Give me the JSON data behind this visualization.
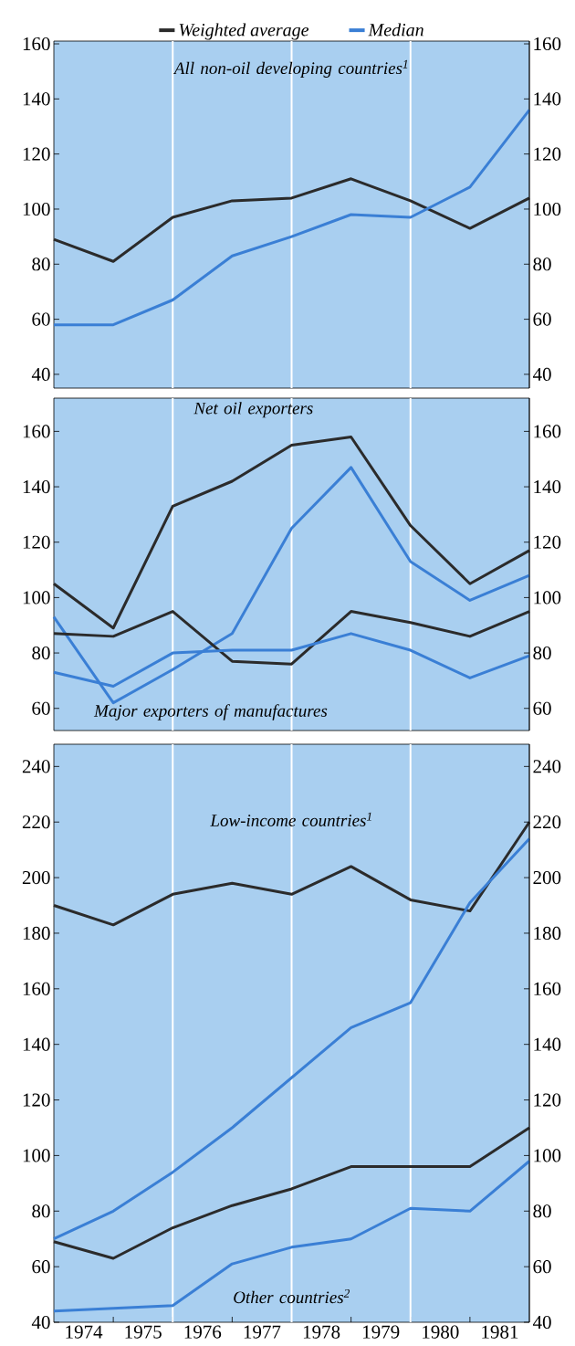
{
  "chart_data": [
    {
      "type": "line",
      "xlim": [
        1973.5,
        1981.5
      ],
      "ylim": [
        35,
        161
      ],
      "yticks": [
        40,
        60,
        80,
        100,
        120,
        140,
        160
      ],
      "y2lim": [
        35,
        161
      ],
      "y2ticks": [
        40,
        60,
        80,
        100,
        120,
        140,
        160
      ],
      "tick_labels": "y",
      "legend": "top",
      "x": [
        1973.5,
        1974.5,
        1975.5,
        1976.5,
        1977.5,
        1978.5,
        1979.5,
        1980.5,
        1981.5
      ],
      "series": [
        {
          "name": "Weighted average",
          "color": "#2b2b2b",
          "values": [
            89,
            81,
            97,
            103,
            104,
            111,
            103,
            93,
            104
          ]
        },
        {
          "name": "Median",
          "color": "#3a7fd5",
          "values": [
            58,
            58,
            67,
            83,
            90,
            98,
            97,
            108,
            136
          ]
        }
      ],
      "ref_lines": [
        {
          "axis": "x",
          "value": 1975.5,
          "color": "#ffffff"
        },
        {
          "axis": "x",
          "value": 1977.5,
          "color": "#ffffff"
        },
        {
          "axis": "x",
          "value": 1979.5,
          "color": "#ffffff"
        }
      ],
      "annotations": [
        "All non-oil developing countries$^{1}$"
      ]
    },
    {
      "type": "line",
      "xlim": [
        1973.5,
        1981.5
      ],
      "ylim": [
        52,
        172
      ],
      "yticks": [
        60,
        80,
        100,
        120,
        140,
        160
      ],
      "y2lim": [
        52,
        172
      ],
      "y2ticks": [
        60,
        80,
        100,
        120,
        140,
        160
      ],
      "tick_labels": "y",
      "x": [
        1973.5,
        1974.5,
        1975.5,
        1976.5,
        1977.5,
        1978.5,
        1979.5,
        1980.5,
        1981.5
      ],
      "series": [
        {
          "color": "#2b2b2b",
          "values": [
            105,
            89,
            133,
            142,
            155,
            158,
            126,
            105,
            117
          ]
        },
        {
          "color": "#3a7fd5",
          "values": [
            93,
            62,
            74,
            87,
            125,
            147,
            113,
            99,
            108
          ]
        },
        {
          "color": "#2b2b2b",
          "values": [
            87,
            86,
            95,
            77,
            76,
            95,
            91,
            86,
            95
          ]
        },
        {
          "color": "#3a7fd5",
          "values": [
            73,
            68,
            80,
            81,
            81,
            87,
            81,
            71,
            79
          ]
        }
      ],
      "ref_lines": [
        {
          "axis": "x",
          "value": 1975.5,
          "color": "#ffffff"
        },
        {
          "axis": "x",
          "value": 1977.5,
          "color": "#ffffff"
        },
        {
          "axis": "x",
          "value": 1979.5,
          "color": "#ffffff"
        }
      ],
      "annotations": [
        "Net oil exporters",
        "Major exporters of manufactures"
      ]
    },
    {
      "type": "line",
      "xlim": [
        1973.5,
        1981.5
      ],
      "ylim": [
        40,
        248
      ],
      "yticks": [
        40,
        60,
        80,
        100,
        120,
        140,
        160,
        180,
        200,
        220,
        240
      ],
      "y2lim": [
        40,
        248
      ],
      "y2ticks": [
        40,
        60,
        80,
        100,
        120,
        140,
        160,
        180,
        200,
        220,
        240
      ],
      "xticks": [
        {
          "value": 1974,
          "label": "1974"
        },
        {
          "value": 1974.5,
          "label": null
        },
        {
          "value": 1975,
          "label": "1975"
        },
        {
          "value": 1975.5,
          "label": null
        },
        {
          "value": 1976,
          "label": "1976"
        },
        {
          "value": 1976.5,
          "label": null
        },
        {
          "value": 1977,
          "label": "1977"
        },
        {
          "value": 1977.5,
          "label": null
        },
        {
          "value": 1978,
          "label": "1978"
        },
        {
          "value": 1978.5,
          "label": null
        },
        {
          "value": 1979,
          "label": "1979"
        },
        {
          "value": 1979.5,
          "label": null
        },
        {
          "value": 1980,
          "label": "1980"
        },
        {
          "value": 1980.5,
          "label": null
        },
        {
          "value": 1981,
          "label": "1981"
        }
      ],
      "x": [
        1973.5,
        1974.5,
        1975.5,
        1976.5,
        1977.5,
        1978.5,
        1979.5,
        1980.5,
        1981.5
      ],
      "series": [
        {
          "color": "#2b2b2b",
          "values": [
            190,
            183,
            194,
            198,
            194,
            204,
            192,
            188,
            220
          ]
        },
        {
          "color": "#3a7fd5",
          "values": [
            70,
            80,
            94,
            110,
            128,
            146,
            155,
            191,
            214
          ]
        },
        {
          "color": "#2b2b2b",
          "values": [
            69,
            63,
            74,
            82,
            88,
            96,
            96,
            96,
            110
          ]
        },
        {
          "color": "#3a7fd5",
          "values": [
            44,
            45,
            46,
            61,
            67,
            70,
            81,
            80,
            98
          ]
        }
      ],
      "ref_lines": [
        {
          "axis": "x",
          "value": 1975.5,
          "color": "#ffffff"
        },
        {
          "axis": "x",
          "value": 1977.5,
          "color": "#ffffff"
        },
        {
          "axis": "x",
          "value": 1979.5,
          "color": "#ffffff"
        }
      ],
      "annotations": [
        "Low-income countries$^{1}$",
        "Other countries$^{2}$"
      ]
    }
  ]
}
